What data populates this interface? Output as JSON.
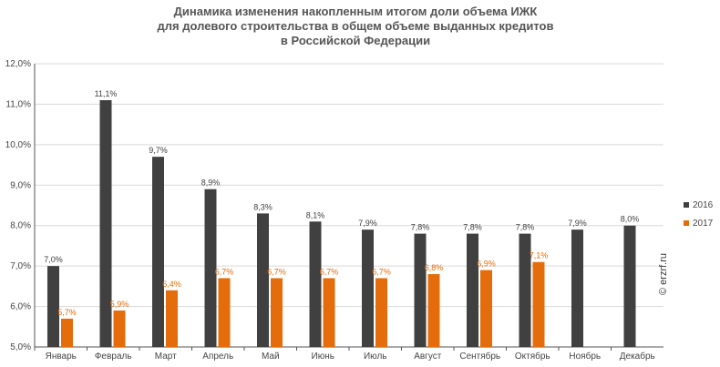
{
  "title": {
    "line1": "Динамика изменения накопленным итогом доли объема ИЖК",
    "line2": "для долевого строительства  в общем объеме выданных кредитов",
    "line3": "в Российской  Федерации"
  },
  "watermark": "© erzrf.ru",
  "colors": {
    "s2016": "#404040",
    "s2017": "#e46c0a",
    "grid": "#d9d9d9",
    "axis": "#555555"
  },
  "chart_data": {
    "type": "bar",
    "title": "Динамика изменения накопленным итогом доли объема ИЖК для долевого строительства  в общем объеме выданных кредитов в Российской  Федерации",
    "categories": [
      "Январь",
      "Февраль",
      "Март",
      "Апрель",
      "Май",
      "Июнь",
      "Июль",
      "Август",
      "Сентябрь",
      "Октябрь",
      "Ноябрь",
      "Декабрь"
    ],
    "series": [
      {
        "name": "2016",
        "values": [
          7.0,
          11.1,
          9.7,
          8.9,
          8.3,
          8.1,
          7.9,
          7.8,
          7.8,
          7.8,
          7.9,
          8.0
        ],
        "labels": [
          "7,0%",
          "11,1%",
          "9,7%",
          "8,9%",
          "8,3%",
          "8,1%",
          "7,9%",
          "7,8%",
          "7,8%",
          "7,8%",
          "7,9%",
          "8,0%"
        ]
      },
      {
        "name": "2017",
        "values": [
          5.7,
          5.9,
          6.4,
          6.7,
          6.7,
          6.7,
          6.7,
          6.8,
          6.9,
          7.1,
          null,
          null
        ],
        "labels": [
          "5,7%",
          "5,9%",
          "6,4%",
          "6,7%",
          "6,7%",
          "6,7%",
          "6,7%",
          "6,8%",
          "6,9%",
          "7,1%",
          "",
          ""
        ]
      }
    ],
    "ylim": [
      5.0,
      12.0
    ],
    "yticks": [
      5.0,
      6.0,
      7.0,
      8.0,
      9.0,
      10.0,
      11.0,
      12.0
    ],
    "ytick_labels": [
      "5,0%",
      "6,0%",
      "7,0%",
      "8,0%",
      "9,0%",
      "10,0%",
      "11,0%",
      "12,0%"
    ],
    "grid": true,
    "legend": "right"
  }
}
